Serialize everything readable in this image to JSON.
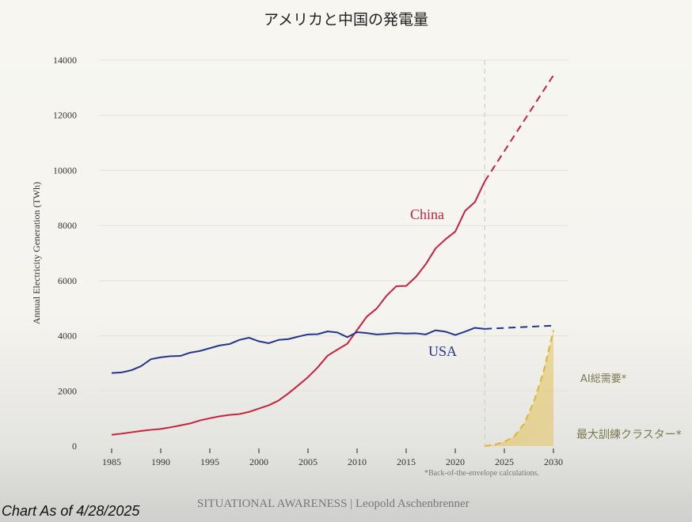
{
  "chart_data": {
    "type": "line",
    "title": "アメリカと中国の発電量",
    "ylabel": "Annual Electricity Generation (TWh)",
    "xlabel": "",
    "xlim": [
      1985,
      2030
    ],
    "ylim": [
      0,
      14000
    ],
    "x_ticks": [
      1985,
      1990,
      1995,
      2000,
      2005,
      2010,
      2015,
      2020,
      2025,
      2030
    ],
    "y_ticks": [
      0,
      2000,
      4000,
      6000,
      8000,
      10000,
      12000,
      14000
    ],
    "grid": "horizontal",
    "projection_start": 2023,
    "series": [
      {
        "name": "China",
        "color": "#c8213f",
        "style": "solid",
        "x": [
          1985,
          1986,
          1987,
          1988,
          1989,
          1990,
          1991,
          1992,
          1993,
          1994,
          1995,
          1996,
          1997,
          1998,
          1999,
          2000,
          2001,
          2002,
          2003,
          2004,
          2005,
          2006,
          2007,
          2008,
          2009,
          2010,
          2011,
          2012,
          2013,
          2014,
          2015,
          2016,
          2017,
          2018,
          2019,
          2020,
          2021,
          2022,
          2023
        ],
        "values": [
          410,
          450,
          500,
          550,
          590,
          620,
          680,
          750,
          820,
          930,
          1010,
          1080,
          1130,
          1160,
          1240,
          1360,
          1480,
          1650,
          1910,
          2200,
          2500,
          2860,
          3280,
          3500,
          3710,
          4210,
          4700,
          4990,
          5450,
          5800,
          5810,
          6140,
          6600,
          7170,
          7500,
          7780,
          8530,
          8850,
          9600
        ]
      },
      {
        "name": "China projection",
        "color": "#c8213f",
        "style": "dashed",
        "x": [
          2023,
          2030
        ],
        "values": [
          9600,
          13450
        ]
      },
      {
        "name": "USA",
        "color": "#26358c",
        "style": "solid",
        "x": [
          1985,
          1986,
          1987,
          1988,
          1989,
          1990,
          1991,
          1992,
          1993,
          1994,
          1995,
          1996,
          1997,
          1998,
          1999,
          2000,
          2001,
          2002,
          2003,
          2004,
          2005,
          2006,
          2007,
          2008,
          2009,
          2010,
          2011,
          2012,
          2013,
          2014,
          2015,
          2016,
          2017,
          2018,
          2019,
          2020,
          2021,
          2022,
          2023
        ],
        "values": [
          2650,
          2670,
          2750,
          2900,
          3150,
          3220,
          3260,
          3270,
          3390,
          3450,
          3550,
          3650,
          3700,
          3850,
          3930,
          3800,
          3730,
          3850,
          3880,
          3970,
          4050,
          4060,
          4160,
          4120,
          3950,
          4130,
          4100,
          4050,
          4070,
          4100,
          4080,
          4090,
          4050,
          4200,
          4150,
          4030,
          4150,
          4290,
          4250
        ]
      },
      {
        "name": "USA projection",
        "color": "#26358c",
        "style": "dashed",
        "x": [
          2023,
          2030
        ],
        "values": [
          4250,
          4370
        ]
      },
      {
        "name": "AI総需要*",
        "color": "#e0b83a",
        "style": "dashed-area",
        "x": [
          2023,
          2024,
          2025,
          2026,
          2027,
          2028,
          2029,
          2030
        ],
        "values": [
          0,
          50,
          150,
          350,
          800,
          1600,
          2700,
          4200
        ]
      },
      {
        "name": "最大訓練クラスター*",
        "color": "#e8d49a",
        "style": "area",
        "x": [
          2023,
          2024,
          2025,
          2026,
          2027,
          2028,
          2029,
          2030
        ],
        "values": [
          0,
          10,
          30,
          70,
          150,
          300,
          600,
          1000
        ]
      }
    ],
    "labels": {
      "china": "China",
      "usa": "USA",
      "ai_total": "AI総需要*",
      "largest_cluster": "最大訓練クラスター*"
    },
    "footnote": "*Back-of-the-envelope calculations."
  },
  "footer": "SITUATIONAL AWARENESS | Leopold Aschenbrenner",
  "caption": "Chart As of 4/28/2025"
}
